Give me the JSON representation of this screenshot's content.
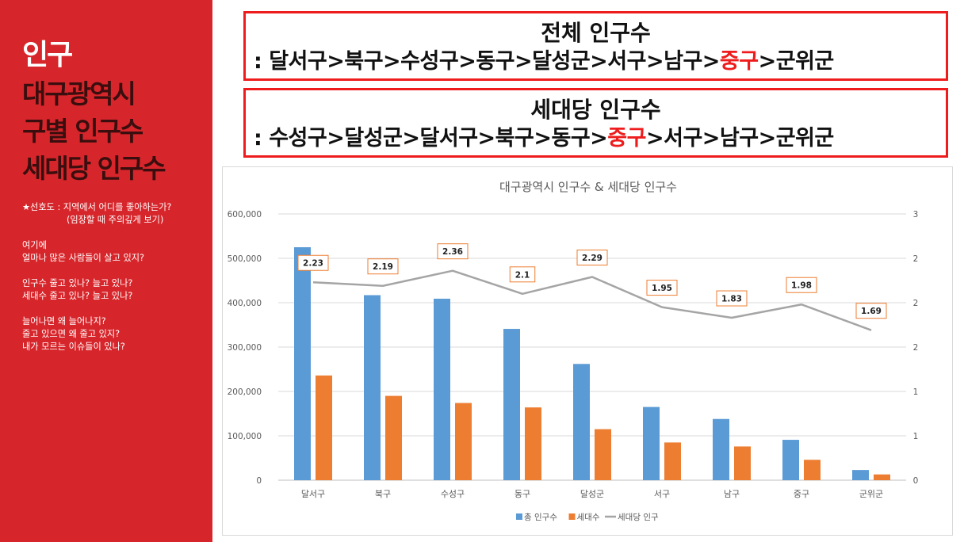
{
  "left_panel": {
    "title_line1": "인구",
    "title_line2": "대구광역시",
    "title_line3": "구별 인구수",
    "title_line4": "세대당 인구수",
    "note1": "★선호도 : 지역에서 어디를 좋아하는가?",
    "note2": "(임장할 때 주의깊게 보기)",
    "note3": "여기에",
    "note4": "얼마나 많은 사람들이 살고 있지?",
    "note5": "인구수 줄고 있나? 늘고 있나?",
    "note6": "세대수 줄고 있나? 늘고 있나?",
    "note7": "늘어나면 왜 늘어나지?",
    "note8": "줄고 있으면 왜 줄고 있지?",
    "note9": "내가 모르는 이슈들이 있나?"
  },
  "box1": {
    "title": "전체 인구수",
    "prefix": ": ",
    "items": [
      "달서구",
      "북구",
      "수성구",
      "동구",
      "달성군",
      "서구",
      "남구",
      "중구",
      "군위군"
    ],
    "highlight": "중구",
    "separator": ">"
  },
  "box2": {
    "title": "세대당 인구수",
    "prefix": ": ",
    "items": [
      "수성구",
      "달성군",
      "달서구",
      "북구",
      "동구",
      "중구",
      "서구",
      "남구",
      "군위군"
    ],
    "highlight": "중구",
    "separator": ">"
  },
  "chart_data": {
    "type": "bar",
    "title": "대구광역시 인구수 & 세대당 인구수",
    "categories": [
      "달서구",
      "북구",
      "수성구",
      "동구",
      "달성군",
      "서구",
      "남구",
      "중구",
      "군위군"
    ],
    "series": [
      {
        "name": "총 인구수",
        "type": "bar",
        "axis": "left",
        "color": "#5b9bd5",
        "values": [
          525000,
          417000,
          409000,
          341000,
          262000,
          165000,
          138000,
          91000,
          23000
        ]
      },
      {
        "name": "세대수",
        "type": "bar",
        "axis": "left",
        "color": "#ed7d31",
        "values": [
          236000,
          190000,
          174000,
          164000,
          115000,
          85000,
          76000,
          46000,
          13000
        ]
      },
      {
        "name": "세대당 인구",
        "type": "line",
        "axis": "right",
        "color": "#a5a5a5",
        "values": [
          2.23,
          2.19,
          2.36,
          2.1,
          2.29,
          1.95,
          1.83,
          1.98,
          1.69
        ]
      }
    ],
    "data_labels": [
      "2.23",
      "2.19",
      "2.36",
      "2.1",
      "2.29",
      "1.95",
      "1.83",
      "1.98",
      "1.69"
    ],
    "ylim": [
      0,
      600000
    ],
    "y_ticks": [
      "0",
      "100,000",
      "200,000",
      "300,000",
      "400,000",
      "500,000",
      "600,000"
    ],
    "y2lim": [
      0,
      3
    ],
    "y2_ticks": [
      "0",
      "1",
      "1",
      "2",
      "2",
      "2",
      "3"
    ],
    "xlabel": "",
    "ylabel": "",
    "grid": true,
    "legend": "bottom"
  }
}
